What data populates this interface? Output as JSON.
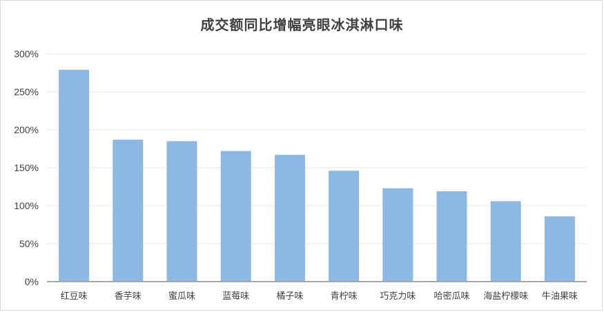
{
  "chart_data": {
    "type": "bar",
    "title": "成交额同比增幅亮眼冰淇淋口味",
    "xlabel": "",
    "ylabel": "",
    "categories": [
      "红豆味",
      "香芋味",
      "蜜瓜味",
      "蓝莓味",
      "橘子味",
      "青柠味",
      "巧克力味",
      "哈密瓜味",
      "海盐柠檬味",
      "牛油果味"
    ],
    "values": [
      279,
      187,
      185,
      172,
      167,
      146,
      123,
      119,
      106,
      86
    ],
    "ylim": [
      0,
      300
    ],
    "yticks": [
      0,
      50,
      100,
      150,
      200,
      250,
      300
    ],
    "ytick_labels": [
      "0%",
      "50%",
      "100%",
      "150%",
      "200%",
      "250%",
      "300%"
    ],
    "grid": true,
    "legend": "none",
    "bar_color": "#8db8e2",
    "grid_color": "#e6e6e6",
    "axis_color": "#a6a6a6"
  }
}
